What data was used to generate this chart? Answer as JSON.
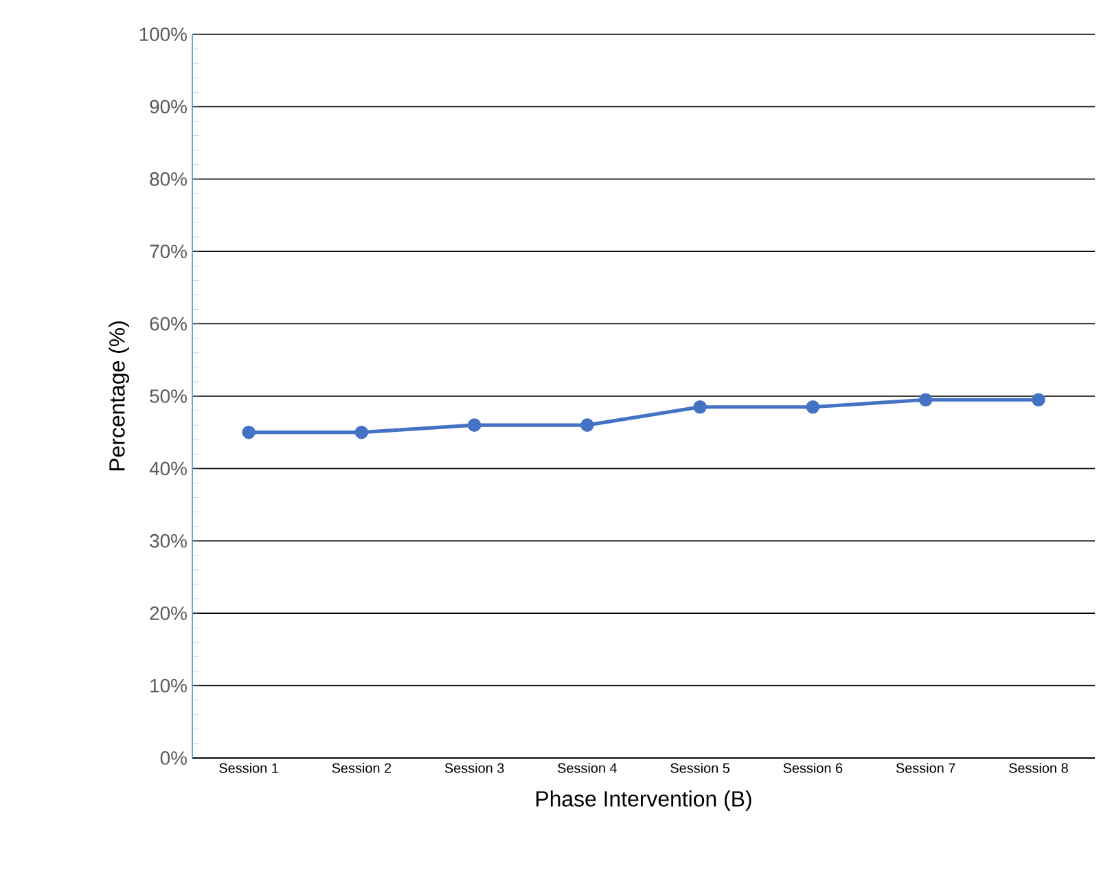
{
  "chart_data": {
    "type": "line",
    "xlabel": "Phase Intervention (B)",
    "ylabel": "Percentage (%)",
    "categories": [
      "Session 1",
      "Session 2",
      "Session 3",
      "Session 4",
      "Session 5",
      "Session 6",
      "Session 7",
      "Session 8"
    ],
    "series": [
      {
        "color": "#4472c4",
        "values": [
          45,
          45,
          46,
          46,
          48.5,
          48.5,
          49.5,
          49.5
        ]
      }
    ],
    "ylim": [
      0,
      100
    ],
    "yticks": [
      {
        "value": 0,
        "label": "0%"
      },
      {
        "value": 10,
        "label": "10%"
      },
      {
        "value": 20,
        "label": "20%"
      },
      {
        "value": 30,
        "label": "30%"
      },
      {
        "value": 40,
        "label": "40%"
      },
      {
        "value": 50,
        "label": "50%"
      },
      {
        "value": 60,
        "label": "60%"
      },
      {
        "value": 70,
        "label": "70%"
      },
      {
        "value": 80,
        "label": "80%"
      },
      {
        "value": 90,
        "label": "90%"
      },
      {
        "value": 100,
        "label": "100%"
      }
    ],
    "grid": "y",
    "marker": "circle",
    "line_style": "solid"
  }
}
